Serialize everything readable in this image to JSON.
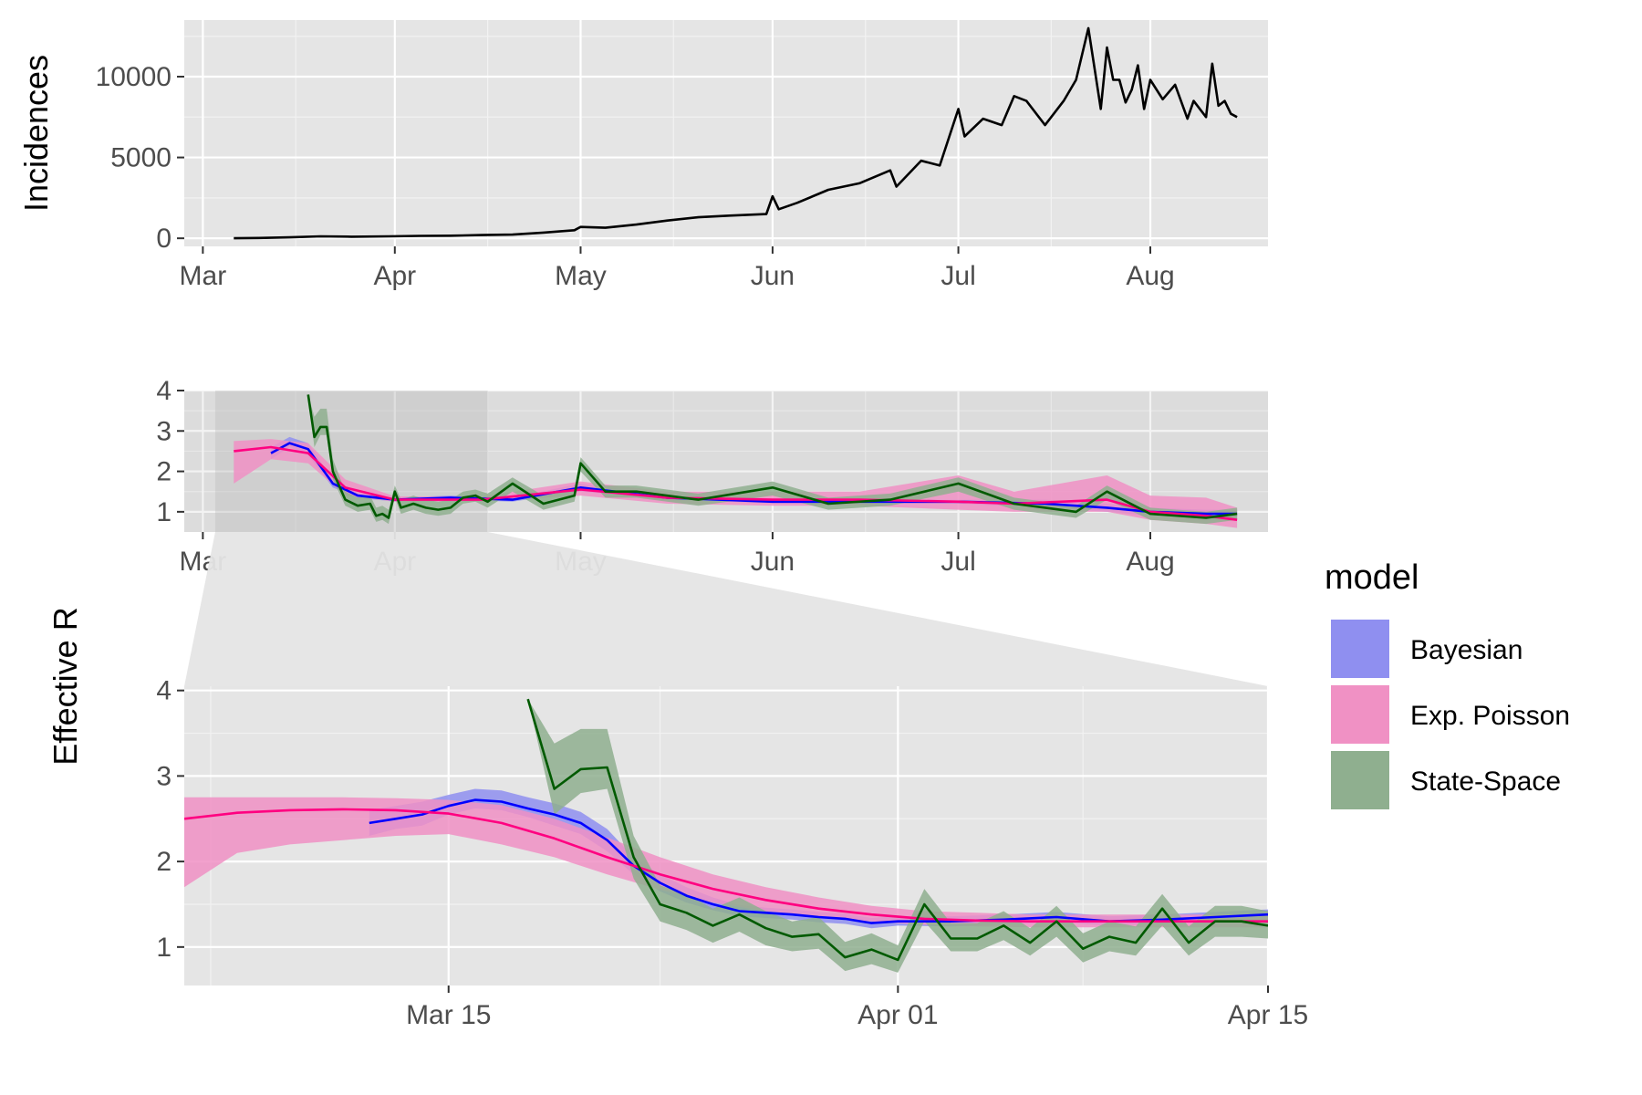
{
  "chart_data": [
    {
      "panel": "top",
      "type": "line",
      "ylabel": "Incidences",
      "xlabel": "",
      "x_ticks": [
        "Mar",
        "Apr",
        "May",
        "Jun",
        "Jul",
        "Aug"
      ],
      "y_ticks": [
        "0",
        "5000",
        "10000"
      ],
      "ylim": [
        -500,
        13500
      ],
      "x_range": [
        "2020-02-27",
        "2020-08-20"
      ],
      "color": "#000000",
      "series": [
        {
          "x": [
            "2020-03-06",
            "2020-03-10",
            "2020-03-15",
            "2020-03-20",
            "2020-03-25",
            "2020-03-31",
            "2020-04-05",
            "2020-04-10",
            "2020-04-15",
            "2020-04-20",
            "2020-04-25",
            "2020-04-30",
            "2020-05-01",
            "2020-05-05",
            "2020-05-10",
            "2020-05-15",
            "2020-05-20",
            "2020-05-25",
            "2020-05-31",
            "2020-06-01",
            "2020-06-02",
            "2020-06-05",
            "2020-06-10",
            "2020-06-15",
            "2020-06-20",
            "2020-06-21",
            "2020-06-25",
            "2020-06-28",
            "2020-07-01",
            "2020-07-02",
            "2020-07-05",
            "2020-07-08",
            "2020-07-10",
            "2020-07-12",
            "2020-07-15",
            "2020-07-18",
            "2020-07-20",
            "2020-07-22",
            "2020-07-23",
            "2020-07-24",
            "2020-07-25",
            "2020-07-26",
            "2020-07-27",
            "2020-07-28",
            "2020-07-29",
            "2020-07-30",
            "2020-07-31",
            "2020-08-01",
            "2020-08-03",
            "2020-08-05",
            "2020-08-07",
            "2020-08-08",
            "2020-08-10",
            "2020-08-11",
            "2020-08-12",
            "2020-08-13",
            "2020-08-14",
            "2020-08-15"
          ],
          "y": [
            0,
            20,
            60,
            120,
            100,
            120,
            150,
            160,
            200,
            230,
            350,
            500,
            700,
            650,
            850,
            1100,
            1300,
            1400,
            1500,
            2600,
            1800,
            2200,
            3000,
            3400,
            4200,
            3200,
            4800,
            4500,
            8000,
            6300,
            7400,
            7000,
            8800,
            8500,
            7000,
            8500,
            9800,
            13000,
            10500,
            8000,
            11800,
            9800,
            9800,
            8400,
            9200,
            10700,
            8000,
            9800,
            8600,
            9500,
            7400,
            8500,
            7500,
            10800,
            8200,
            8500,
            7700,
            7500
          ]
        }
      ]
    },
    {
      "panel": "middle",
      "type": "line",
      "ylabel": "Effective R",
      "x_ticks": [
        "Mar",
        "Apr",
        "May",
        "Jun",
        "Jul",
        "Aug"
      ],
      "y_ticks": [
        "1",
        "2",
        "3",
        "4"
      ],
      "ylim": [
        0.5,
        4.0
      ],
      "x_range": [
        "2020-02-27",
        "2020-08-20"
      ],
      "zoom_window": [
        "2020-03-03",
        "2020-04-16"
      ],
      "series": [
        {
          "name": "Bayesian",
          "color": "#0000ff",
          "fill": "#8f8ff0",
          "x": [
            "2020-03-12",
            "2020-03-15",
            "2020-03-18",
            "2020-03-22",
            "2020-03-26",
            "2020-04-01",
            "2020-04-10",
            "2020-04-20",
            "2020-05-01",
            "2020-05-15",
            "2020-06-01",
            "2020-06-15",
            "2020-07-01",
            "2020-07-15",
            "2020-07-25",
            "2020-08-01",
            "2020-08-10",
            "2020-08-15"
          ],
          "y": [
            2.45,
            2.7,
            2.55,
            1.7,
            1.4,
            1.3,
            1.35,
            1.3,
            1.6,
            1.35,
            1.25,
            1.25,
            1.25,
            1.2,
            1.1,
            1.0,
            0.95,
            0.95
          ],
          "lo": [
            2.3,
            2.6,
            2.4,
            1.6,
            1.35,
            1.25,
            1.3,
            1.25,
            1.5,
            1.3,
            1.2,
            1.2,
            1.2,
            1.1,
            1.0,
            0.9,
            0.85,
            0.85
          ],
          "hi": [
            2.6,
            2.85,
            2.7,
            1.8,
            1.45,
            1.35,
            1.4,
            1.35,
            1.7,
            1.4,
            1.3,
            1.3,
            1.3,
            1.3,
            1.2,
            1.1,
            1.05,
            1.05
          ]
        },
        {
          "name": "Exp. Poisson",
          "color": "#ff0080",
          "fill": "#f091c4",
          "x": [
            "2020-03-06",
            "2020-03-12",
            "2020-03-18",
            "2020-03-24",
            "2020-04-01",
            "2020-04-15",
            "2020-05-01",
            "2020-05-15",
            "2020-06-01",
            "2020-06-15",
            "2020-07-01",
            "2020-07-10",
            "2020-07-25",
            "2020-08-01",
            "2020-08-10",
            "2020-08-15"
          ],
          "y": [
            2.5,
            2.6,
            2.45,
            1.6,
            1.3,
            1.3,
            1.55,
            1.35,
            1.3,
            1.3,
            1.25,
            1.2,
            1.3,
            1.0,
            0.9,
            0.8
          ],
          "lo": [
            1.7,
            2.3,
            2.2,
            1.4,
            1.25,
            1.25,
            1.4,
            1.2,
            1.15,
            1.15,
            1.05,
            1.0,
            1.0,
            0.8,
            0.7,
            0.6
          ],
          "hi": [
            2.75,
            2.8,
            2.7,
            1.8,
            1.38,
            1.38,
            1.75,
            1.5,
            1.5,
            1.5,
            1.9,
            1.5,
            1.9,
            1.4,
            1.35,
            1.1
          ]
        },
        {
          "name": "State-Space",
          "color": "#005a00",
          "fill": "#8faf8f",
          "x": [
            "2020-03-18",
            "2020-03-19",
            "2020-03-20",
            "2020-03-21",
            "2020-03-22",
            "2020-03-24",
            "2020-03-26",
            "2020-03-28",
            "2020-03-29",
            "2020-03-30",
            "2020-03-31",
            "2020-04-01",
            "2020-04-02",
            "2020-04-04",
            "2020-04-06",
            "2020-04-08",
            "2020-04-10",
            "2020-04-12",
            "2020-04-14",
            "2020-04-16",
            "2020-04-20",
            "2020-04-25",
            "2020-04-30",
            "2020-05-01",
            "2020-05-05",
            "2020-05-10",
            "2020-05-20",
            "2020-06-01",
            "2020-06-10",
            "2020-06-20",
            "2020-07-01",
            "2020-07-10",
            "2020-07-20",
            "2020-07-25",
            "2020-08-01",
            "2020-08-10",
            "2020-08-15"
          ],
          "y": [
            3.9,
            2.85,
            3.1,
            3.1,
            2.0,
            1.3,
            1.15,
            1.2,
            0.9,
            0.95,
            0.85,
            1.5,
            1.1,
            1.2,
            1.1,
            1.05,
            1.1,
            1.35,
            1.4,
            1.25,
            1.7,
            1.2,
            1.4,
            2.2,
            1.5,
            1.5,
            1.3,
            1.6,
            1.2,
            1.3,
            1.7,
            1.2,
            1.0,
            1.5,
            0.95,
            0.85,
            0.95
          ],
          "lo": [
            3.9,
            2.6,
            2.9,
            2.9,
            1.8,
            1.15,
            1.0,
            1.05,
            0.75,
            0.8,
            0.7,
            1.35,
            0.95,
            1.05,
            0.95,
            0.9,
            0.95,
            1.2,
            1.25,
            1.1,
            1.5,
            1.05,
            1.25,
            2.0,
            1.35,
            1.35,
            1.15,
            1.4,
            1.05,
            1.15,
            1.5,
            1.05,
            0.85,
            1.3,
            0.8,
            0.7,
            0.8
          ],
          "hi": [
            3.9,
            3.35,
            3.55,
            3.55,
            2.3,
            1.5,
            1.35,
            1.4,
            1.1,
            1.15,
            1.05,
            1.65,
            1.3,
            1.4,
            1.3,
            1.25,
            1.3,
            1.5,
            1.55,
            1.45,
            1.85,
            1.4,
            1.55,
            2.35,
            1.65,
            1.65,
            1.45,
            1.75,
            1.35,
            1.45,
            1.85,
            1.35,
            1.15,
            1.65,
            1.1,
            1.0,
            1.1
          ]
        }
      ]
    },
    {
      "panel": "bottom",
      "type": "line",
      "x_ticks": [
        "Mar 15",
        "Apr 01",
        "Apr 15"
      ],
      "y_ticks": [
        "1",
        "2",
        "3",
        "4"
      ],
      "ylim": [
        0.55,
        4.05
      ],
      "x_range": [
        "2020-03-05",
        "2020-04-15"
      ],
      "series": [
        {
          "name": "Bayesian",
          "color": "#0000ff",
          "fill": "#8f8ff0",
          "x": [
            "2020-03-12",
            "2020-03-13",
            "2020-03-14",
            "2020-03-15",
            "2020-03-16",
            "2020-03-17",
            "2020-03-18",
            "2020-03-19",
            "2020-03-20",
            "2020-03-21",
            "2020-03-22",
            "2020-03-23",
            "2020-03-24",
            "2020-03-25",
            "2020-03-26",
            "2020-03-27",
            "2020-03-28",
            "2020-03-29",
            "2020-03-30",
            "2020-03-31",
            "2020-04-01",
            "2020-04-03",
            "2020-04-05",
            "2020-04-07",
            "2020-04-09",
            "2020-04-11",
            "2020-04-13",
            "2020-04-15"
          ],
          "y": [
            2.45,
            2.5,
            2.55,
            2.65,
            2.72,
            2.7,
            2.62,
            2.55,
            2.45,
            2.25,
            1.95,
            1.75,
            1.6,
            1.5,
            1.42,
            1.4,
            1.38,
            1.35,
            1.33,
            1.28,
            1.3,
            1.3,
            1.32,
            1.35,
            1.3,
            1.32,
            1.35,
            1.38
          ],
          "lo": [
            2.3,
            2.38,
            2.42,
            2.55,
            2.62,
            2.6,
            2.52,
            2.42,
            2.32,
            2.12,
            1.85,
            1.65,
            1.52,
            1.43,
            1.36,
            1.34,
            1.32,
            1.29,
            1.27,
            1.22,
            1.25,
            1.24,
            1.26,
            1.29,
            1.25,
            1.27,
            1.29,
            1.32
          ],
          "hi": [
            2.6,
            2.65,
            2.7,
            2.78,
            2.85,
            2.83,
            2.75,
            2.68,
            2.58,
            2.38,
            2.05,
            1.85,
            1.7,
            1.58,
            1.49,
            1.46,
            1.44,
            1.41,
            1.39,
            1.34,
            1.36,
            1.36,
            1.38,
            1.41,
            1.36,
            1.38,
            1.41,
            1.44
          ]
        },
        {
          "name": "Exp. Poisson",
          "color": "#ff0080",
          "fill": "#f091c4",
          "x": [
            "2020-03-05",
            "2020-03-07",
            "2020-03-09",
            "2020-03-11",
            "2020-03-13",
            "2020-03-15",
            "2020-03-17",
            "2020-03-19",
            "2020-03-21",
            "2020-03-23",
            "2020-03-25",
            "2020-03-27",
            "2020-03-29",
            "2020-03-31",
            "2020-04-02",
            "2020-04-04",
            "2020-04-06",
            "2020-04-08",
            "2020-04-10",
            "2020-04-12",
            "2020-04-14",
            "2020-04-15"
          ],
          "y": [
            2.5,
            2.57,
            2.6,
            2.61,
            2.6,
            2.56,
            2.45,
            2.27,
            2.05,
            1.85,
            1.68,
            1.55,
            1.45,
            1.38,
            1.33,
            1.31,
            1.3,
            1.3,
            1.3,
            1.3,
            1.3,
            1.3
          ],
          "lo": [
            1.7,
            2.1,
            2.2,
            2.25,
            2.3,
            2.32,
            2.2,
            2.05,
            1.85,
            1.67,
            1.52,
            1.42,
            1.35,
            1.3,
            1.26,
            1.24,
            1.23,
            1.23,
            1.23,
            1.23,
            1.23,
            1.23
          ],
          "hi": [
            2.75,
            2.75,
            2.75,
            2.75,
            2.74,
            2.72,
            2.66,
            2.5,
            2.28,
            2.05,
            1.85,
            1.7,
            1.58,
            1.48,
            1.42,
            1.4,
            1.38,
            1.38,
            1.38,
            1.38,
            1.38,
            1.38
          ]
        },
        {
          "name": "State-Space",
          "color": "#005a00",
          "fill": "#8faf8f",
          "x": [
            "2020-03-18",
            "2020-03-19",
            "2020-03-20",
            "2020-03-21",
            "2020-03-22",
            "2020-03-23",
            "2020-03-24",
            "2020-03-25",
            "2020-03-26",
            "2020-03-27",
            "2020-03-28",
            "2020-03-29",
            "2020-03-30",
            "2020-03-31",
            "2020-04-01",
            "2020-04-02",
            "2020-04-03",
            "2020-04-04",
            "2020-04-05",
            "2020-04-06",
            "2020-04-07",
            "2020-04-08",
            "2020-04-09",
            "2020-04-10",
            "2020-04-11",
            "2020-04-12",
            "2020-04-13",
            "2020-04-14",
            "2020-04-15"
          ],
          "y": [
            3.9,
            2.85,
            3.08,
            3.1,
            2.05,
            1.5,
            1.4,
            1.25,
            1.38,
            1.22,
            1.12,
            1.15,
            0.88,
            0.97,
            0.85,
            1.5,
            1.1,
            1.1,
            1.25,
            1.05,
            1.3,
            0.98,
            1.12,
            1.05,
            1.45,
            1.05,
            1.3,
            1.3,
            1.25
          ],
          "lo": [
            3.9,
            2.55,
            2.8,
            2.85,
            1.8,
            1.3,
            1.2,
            1.05,
            1.18,
            1.02,
            0.95,
            0.98,
            0.72,
            0.8,
            0.7,
            1.3,
            0.95,
            0.95,
            1.08,
            0.9,
            1.12,
            0.82,
            0.95,
            0.9,
            1.25,
            0.9,
            1.12,
            1.12,
            1.1
          ],
          "hi": [
            3.9,
            3.38,
            3.55,
            3.55,
            2.3,
            1.72,
            1.62,
            1.45,
            1.58,
            1.42,
            1.3,
            1.35,
            1.06,
            1.16,
            1.02,
            1.68,
            1.28,
            1.28,
            1.42,
            1.22,
            1.48,
            1.16,
            1.3,
            1.24,
            1.62,
            1.24,
            1.48,
            1.48,
            1.42
          ]
        }
      ]
    }
  ],
  "legend": {
    "title": "model",
    "placement": "right",
    "items": [
      {
        "label": "Bayesian",
        "color": "#8f8ff0"
      },
      {
        "label": "Exp. Poisson",
        "color": "#f091c4"
      },
      {
        "label": "State-Space",
        "color": "#8faf8f"
      }
    ]
  },
  "labels": {
    "incidences": "Incidences",
    "effective_r": "Effective R"
  }
}
